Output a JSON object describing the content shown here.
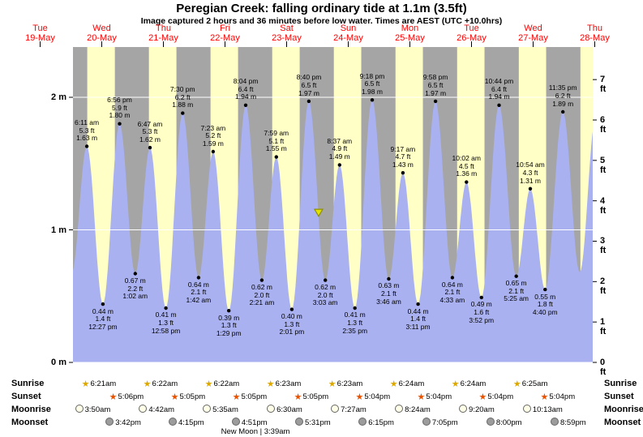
{
  "page": {
    "title": "Peregian Creek: falling ordinary tide at 1.1m (3.5ft)",
    "subtitle": "Image captured 2 hours and 36 minutes before low water. Times are AEST (UTC +10.0hrs)"
  },
  "days": [
    {
      "name": "Tue",
      "date": "19-May"
    },
    {
      "name": "Wed",
      "date": "20-May"
    },
    {
      "name": "Thu",
      "date": "21-May"
    },
    {
      "name": "Fri",
      "date": "22-May"
    },
    {
      "name": "Sat",
      "date": "23-May"
    },
    {
      "name": "Sun",
      "date": "24-May"
    },
    {
      "name": "Mon",
      "date": "25-May"
    },
    {
      "name": "Tue",
      "date": "26-May"
    },
    {
      "name": "Wed",
      "date": "27-May"
    },
    {
      "name": "Thu",
      "date": "28-May"
    }
  ],
  "axes": {
    "left_labels": [
      "0 m",
      "1 m",
      "2 m"
    ],
    "right_labels": [
      "0 ft",
      "1 ft",
      "2 ft",
      "3 ft",
      "4 ft",
      "5 ft",
      "6 ft",
      "7 ft"
    ]
  },
  "colors": {
    "night_band": "#a5a5a5",
    "day_band": "#ffffc6",
    "tide_fill": "#a9b1f0",
    "day_label_red": "#ff0000",
    "gridline": "#ffffff",
    "marker_fill": "#e3e300",
    "marker_stroke": "#8f8f00",
    "sunrise_star": "#dba800",
    "sunset_star": "#e55300",
    "moonrise_fill": "#ffffe8",
    "moonset_fill": "#9c9c9c"
  },
  "chart_data": {
    "type": "area",
    "title": "Peregian Creek tide heights, 19-May to 28-May",
    "x_axis": "time (days 19-May to 28-May, daylight shown as yellow bands, night as gray)",
    "y_axis_left": "height in metres, range 0 to 2 m",
    "y_axis_right": "height in feet, range 0 to 7 ft",
    "tides": [
      {
        "day_index": 1,
        "time": "6:11 am",
        "type": "high",
        "height_m": "1.63",
        "height_ft": "5.3"
      },
      {
        "day_index": 1,
        "time": "12:27 pm",
        "type": "low",
        "height_m": "0.44",
        "height_ft": "1.4"
      },
      {
        "day_index": 1,
        "time": "6:56 pm",
        "type": "high",
        "height_m": "1.80",
        "height_ft": "5.9"
      },
      {
        "day_index": 2,
        "time": "1:02 am",
        "type": "low",
        "height_m": "0.67",
        "height_ft": "2.2"
      },
      {
        "day_index": 2,
        "time": "6:47 am",
        "type": "high",
        "height_m": "1.62",
        "height_ft": "5.3"
      },
      {
        "day_index": 2,
        "time": "12:58 pm",
        "type": "low",
        "height_m": "0.41",
        "height_ft": "1.3"
      },
      {
        "day_index": 2,
        "time": "7:30 pm",
        "type": "high",
        "height_m": "1.88",
        "height_ft": "6.2"
      },
      {
        "day_index": 3,
        "time": "1:42 am",
        "type": "low",
        "height_m": "0.64",
        "height_ft": "2.1"
      },
      {
        "day_index": 3,
        "time": "7:23 am",
        "type": "high",
        "height_m": "1.59",
        "height_ft": "5.2"
      },
      {
        "day_index": 3,
        "time": "1:29 pm",
        "type": "low",
        "height_m": "0.39",
        "height_ft": "1.3"
      },
      {
        "day_index": 3,
        "time": "8:04 pm",
        "type": "high",
        "height_m": "1.94",
        "height_ft": "6.4"
      },
      {
        "day_index": 4,
        "time": "2:21 am",
        "type": "low",
        "height_m": "0.62",
        "height_ft": "2.0"
      },
      {
        "day_index": 4,
        "time": "7:59 am",
        "type": "high",
        "height_m": "1.55",
        "height_ft": "5.1"
      },
      {
        "day_index": 4,
        "time": "2:01 pm",
        "type": "low",
        "height_m": "0.40",
        "height_ft": "1.3"
      },
      {
        "day_index": 4,
        "time": "8:40 pm",
        "type": "high",
        "height_m": "1.97",
        "height_ft": "6.5"
      },
      {
        "day_index": 5,
        "time": "3:03 am",
        "type": "low",
        "height_m": "0.62",
        "height_ft": "2.0"
      },
      {
        "day_index": 5,
        "time": "8:37 am",
        "type": "high",
        "height_m": "1.49",
        "height_ft": "4.9"
      },
      {
        "day_index": 5,
        "time": "2:35 pm",
        "type": "low",
        "height_m": "0.41",
        "height_ft": "1.3"
      },
      {
        "day_index": 5,
        "time": "9:18 pm",
        "type": "high",
        "height_m": "1.98",
        "height_ft": "6.5"
      },
      {
        "day_index": 6,
        "time": "3:46 am",
        "type": "low",
        "height_m": "0.63",
        "height_ft": "2.1"
      },
      {
        "day_index": 6,
        "time": "9:17 am",
        "type": "high",
        "height_m": "1.43",
        "height_ft": "4.7"
      },
      {
        "day_index": 6,
        "time": "3:11 pm",
        "type": "low",
        "height_m": "0.44",
        "height_ft": "1.4"
      },
      {
        "day_index": 6,
        "time": "9:58 pm",
        "type": "high",
        "height_m": "1.97",
        "height_ft": "6.5"
      },
      {
        "day_index": 7,
        "time": "4:33 am",
        "type": "low",
        "height_m": "0.64",
        "height_ft": "2.1"
      },
      {
        "day_index": 7,
        "time": "10:02 am",
        "type": "high",
        "height_m": "1.36",
        "height_ft": "4.5"
      },
      {
        "day_index": 7,
        "time": "3:52 pm",
        "type": "low",
        "height_m": "0.49",
        "height_ft": "1.6"
      },
      {
        "day_index": 7,
        "time": "10:44 pm",
        "type": "high",
        "height_m": "1.94",
        "height_ft": "6.4"
      },
      {
        "day_index": 8,
        "time": "5:25 am",
        "type": "low",
        "height_m": "0.65",
        "height_ft": "2.1"
      },
      {
        "day_index": 8,
        "time": "10:54 am",
        "type": "high",
        "height_m": "1.31",
        "height_ft": "4.3"
      },
      {
        "day_index": 8,
        "time": "4:40 pm",
        "type": "low",
        "height_m": "0.55",
        "height_ft": "1.8"
      },
      {
        "day_index": 8,
        "time": "11:35 pm",
        "type": "high",
        "height_m": "1.89",
        "height_ft": "6.2"
      }
    ],
    "current_marker": {
      "day_index": 5,
      "time": "12:27 am",
      "height_m": 1.1
    },
    "offscreen_curve_anchors": {
      "before": [
        {
          "day_index": 0,
          "time": "5:25 pm",
          "height_m": "1.75"
        },
        {
          "day_index": 1,
          "time": "12:20 am",
          "height_m": "0.68"
        }
      ],
      "after": [
        {
          "day_index": 9,
          "time": "6:09 am",
          "height_m": "0.68"
        },
        {
          "day_index": 9,
          "time": "12:20 pm",
          "height_m": "1.84"
        }
      ]
    },
    "daylight_extra": [
      {
        "day_index": 9,
        "time": "6:25am"
      }
    ]
  },
  "astro": {
    "rows": [
      {
        "label": "Sunrise",
        "icon": "sunrise-star",
        "events": [
          {
            "day_index": 1,
            "time": "6:21am"
          },
          {
            "day_index": 2,
            "time": "6:22am"
          },
          {
            "day_index": 3,
            "time": "6:22am"
          },
          {
            "day_index": 4,
            "time": "6:23am"
          },
          {
            "day_index": 5,
            "time": "6:23am"
          },
          {
            "day_index": 6,
            "time": "6:24am"
          },
          {
            "day_index": 7,
            "time": "6:24am"
          },
          {
            "day_index": 8,
            "time": "6:25am"
          }
        ]
      },
      {
        "label": "Sunset",
        "icon": "sunset-star",
        "events": [
          {
            "day_index": 1,
            "time": "5:06pm"
          },
          {
            "day_index": 2,
            "time": "5:05pm"
          },
          {
            "day_index": 3,
            "time": "5:05pm"
          },
          {
            "day_index": 4,
            "time": "5:05pm"
          },
          {
            "day_index": 5,
            "time": "5:04pm"
          },
          {
            "day_index": 6,
            "time": "5:04pm"
          },
          {
            "day_index": 7,
            "time": "5:04pm"
          },
          {
            "day_index": 8,
            "time": "5:04pm"
          }
        ]
      },
      {
        "label": "Moonrise",
        "icon": "moonrise-circle",
        "events": [
          {
            "day_index": 1,
            "time": "3:50am"
          },
          {
            "day_index": 2,
            "time": "4:42am"
          },
          {
            "day_index": 3,
            "time": "5:35am"
          },
          {
            "day_index": 4,
            "time": "6:30am"
          },
          {
            "day_index": 5,
            "time": "7:27am"
          },
          {
            "day_index": 6,
            "time": "8:24am"
          },
          {
            "day_index": 7,
            "time": "9:20am"
          },
          {
            "day_index": 8,
            "time": "10:13am"
          }
        ]
      },
      {
        "label": "Moonset",
        "icon": "moonset-circle",
        "events": [
          {
            "day_index": 1,
            "time": "3:42pm"
          },
          {
            "day_index": 2,
            "time": "4:15pm"
          },
          {
            "day_index": 3,
            "time": "4:51pm"
          },
          {
            "day_index": 4,
            "time": "5:31pm"
          },
          {
            "day_index": 5,
            "time": "6:15pm"
          },
          {
            "day_index": 6,
            "time": "7:05pm"
          },
          {
            "day_index": 7,
            "time": "8:00pm"
          },
          {
            "day_index": 8,
            "time": "8:59pm"
          }
        ]
      }
    ],
    "footer": "New Moon | 3:39am"
  }
}
